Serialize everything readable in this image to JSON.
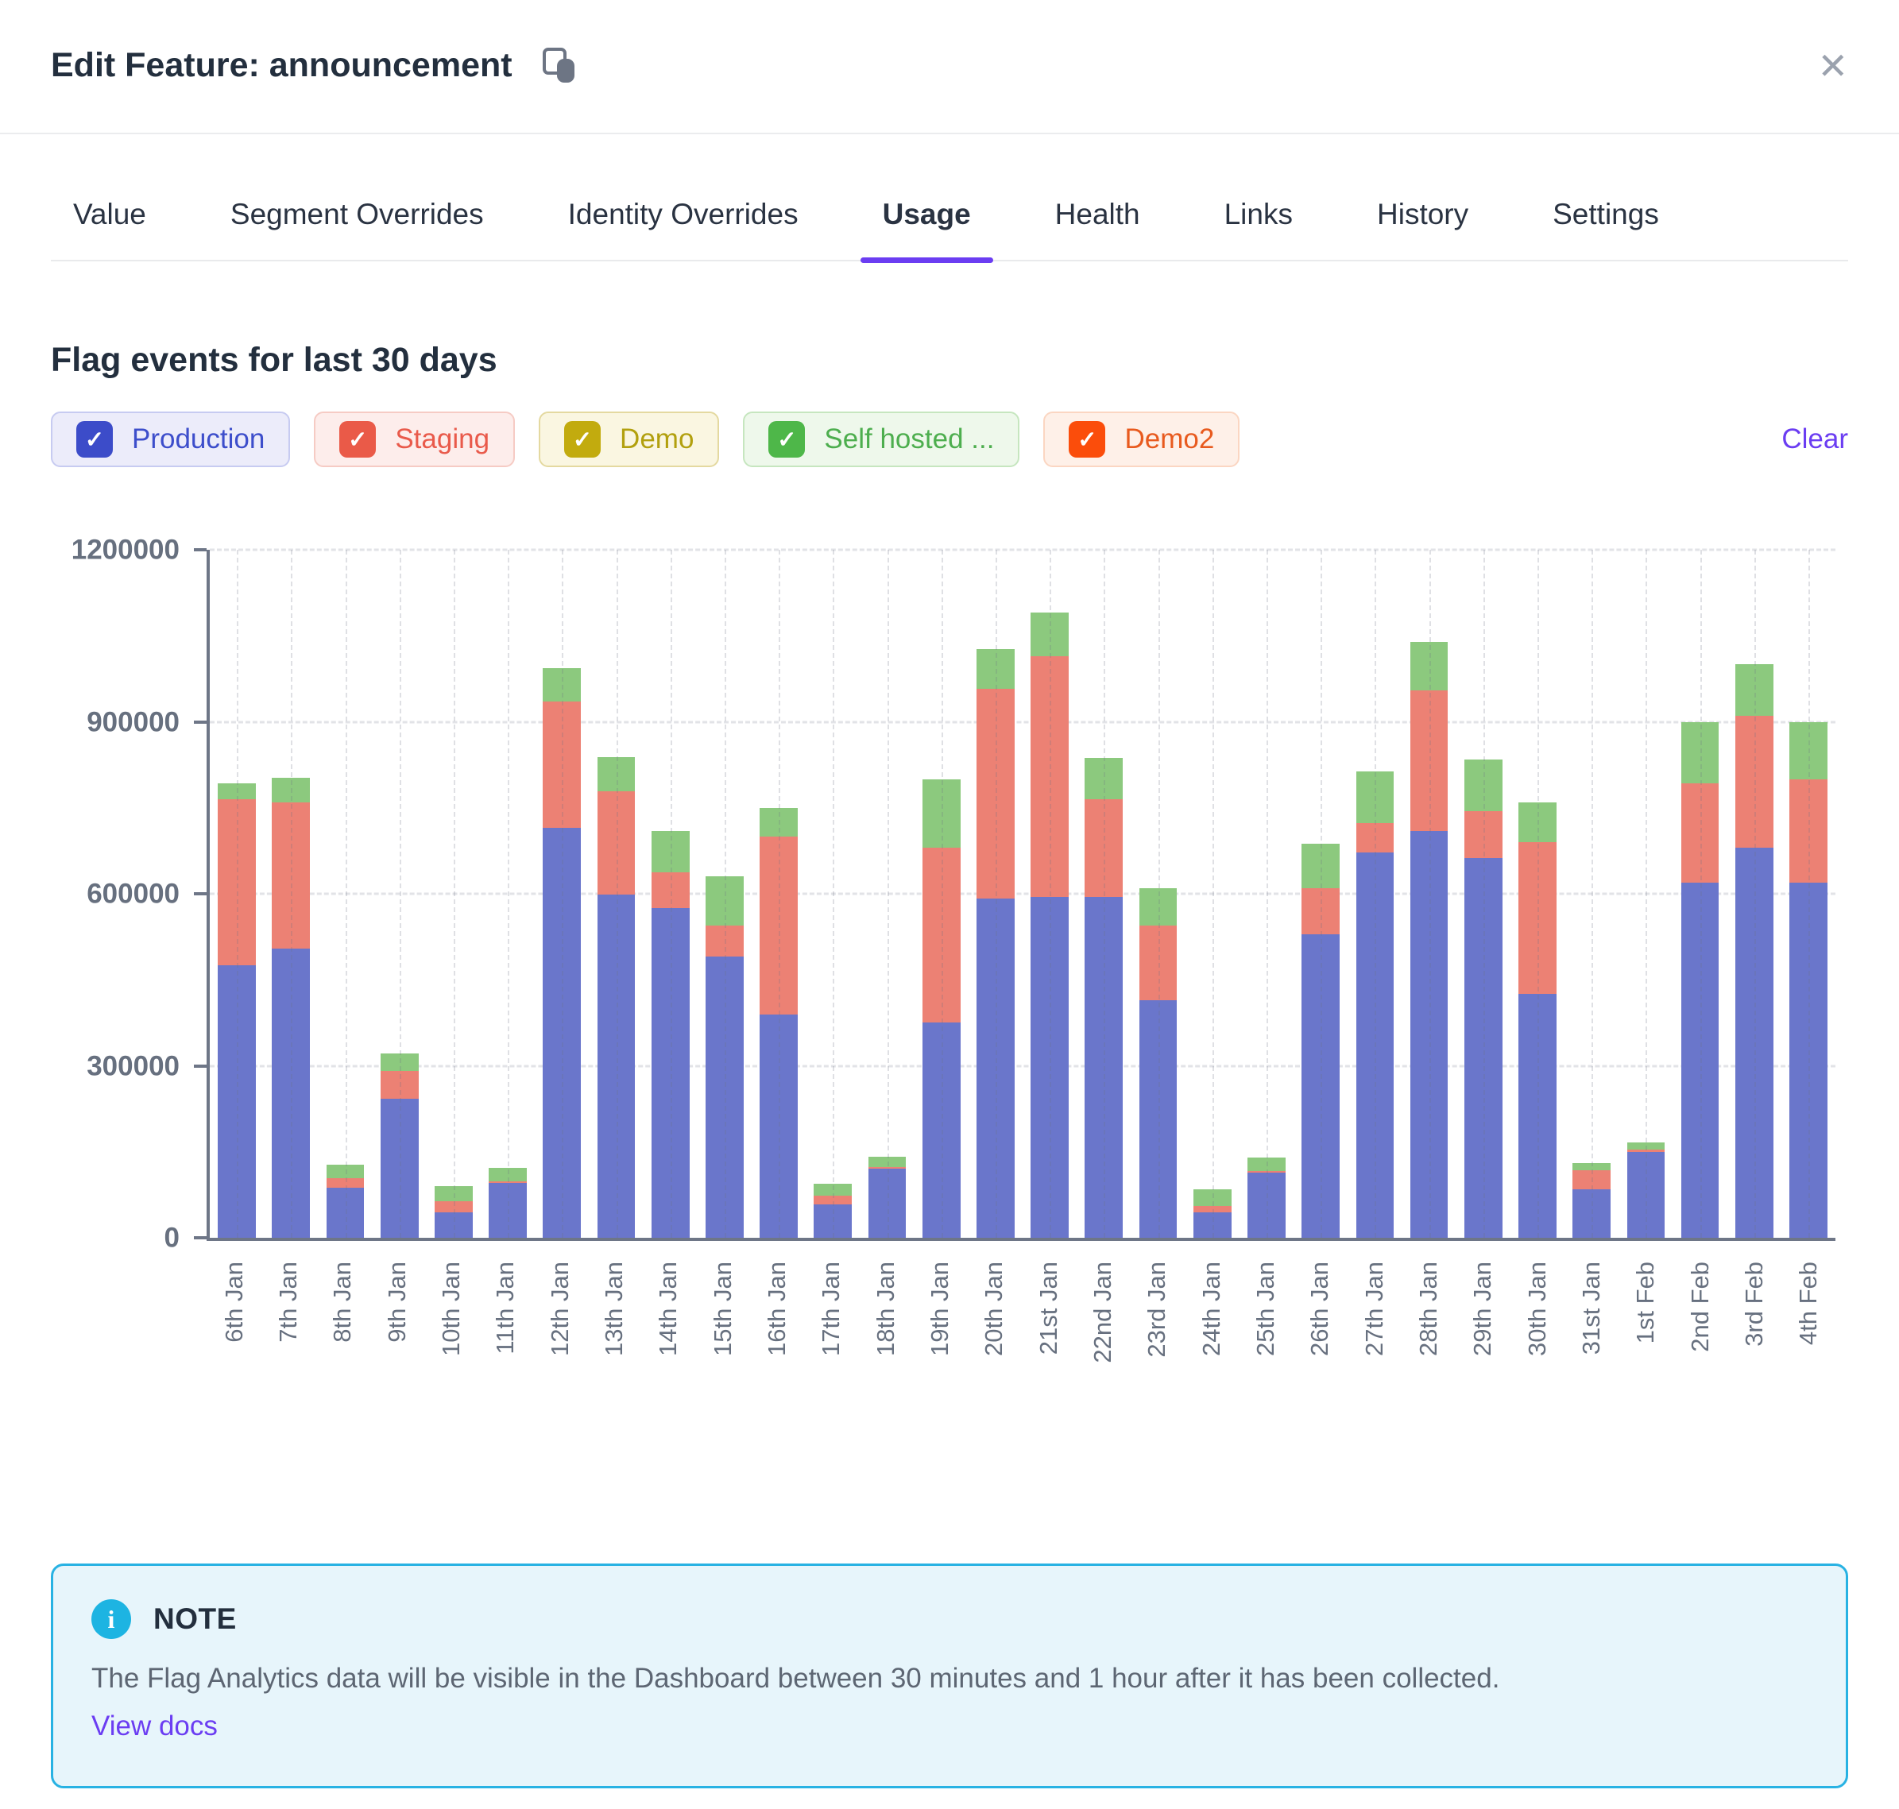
{
  "modal": {
    "title": "Edit Feature: announcement"
  },
  "icons": {
    "close": "✕",
    "check": "✓",
    "info": "i"
  },
  "colors": {
    "accent": "#6b3df2",
    "title_text": "#232f3e",
    "axis_text": "#67707f",
    "axis_line": "#6e7687",
    "note_bg": "#e7f5fb",
    "note_border": "#28b2e3",
    "info_icon_bg": "#1db4e2",
    "close_icon": "#9ba2ae"
  },
  "tabs": [
    {
      "label": "Value",
      "active": false
    },
    {
      "label": "Segment Overrides",
      "active": false
    },
    {
      "label": "Identity Overrides",
      "active": false
    },
    {
      "label": "Usage",
      "active": true
    },
    {
      "label": "Health",
      "active": false
    },
    {
      "label": "Links",
      "active": false
    },
    {
      "label": "History",
      "active": false
    },
    {
      "label": "Settings",
      "active": false
    }
  ],
  "usage": {
    "heading": "Flag events for last 30 days",
    "clear_label": "Clear",
    "filters": [
      {
        "label": "Production",
        "checked": true,
        "check": "#3c4cc9",
        "text": "#3d4ecb",
        "bg": "#ececfa",
        "border": "#c7cbf1"
      },
      {
        "label": "Staging",
        "checked": true,
        "check": "#ea5a48",
        "text": "#e95a4b",
        "bg": "#fdedeb",
        "border": "#f6cbc4"
      },
      {
        "label": "Demo",
        "checked": true,
        "check": "#c2ab0e",
        "text": "#b2a00e",
        "bg": "#faf6e1",
        "border": "#e4d9a0"
      },
      {
        "label": "Self hosted ...",
        "checked": true,
        "check": "#4eb749",
        "text": "#4dae4e",
        "bg": "#eef8eb",
        "border": "#c6e6bf"
      },
      {
        "label": "Demo2",
        "checked": true,
        "check": "#fb4d0b",
        "text": "#e85a1e",
        "bg": "#fef0e8",
        "border": "#fbd6c2"
      }
    ]
  },
  "chart_data": {
    "type": "bar",
    "stacked": true,
    "title": "Flag events for last 30 days",
    "xlabel": "",
    "ylabel": "",
    "ylim": [
      0,
      1200000
    ],
    "yticks": [
      0,
      300000,
      600000,
      900000,
      1200000
    ],
    "grid": true,
    "legend_position": "top-filter-chips",
    "categories": [
      "6th Jan",
      "7th Jan",
      "8th Jan",
      "9th Jan",
      "10th Jan",
      "11th Jan",
      "12th Jan",
      "13th Jan",
      "14th Jan",
      "15th Jan",
      "16th Jan",
      "17th Jan",
      "18th Jan",
      "19th Jan",
      "20th Jan",
      "21st Jan",
      "22nd Jan",
      "23rd Jan",
      "24th Jan",
      "25th Jan",
      "26th Jan",
      "27th Jan",
      "28th Jan",
      "29th Jan",
      "30th Jan",
      "31st Jan",
      "1st Feb",
      "2nd Feb",
      "3rd Feb",
      "4th Feb"
    ],
    "series": [
      {
        "name": "Production",
        "color": "#6a76cb",
        "values": [
          475000,
          505000,
          88000,
          243000,
          45000,
          95000,
          715000,
          598000,
          575000,
          490000,
          390000,
          58000,
          120000,
          375000,
          592000,
          595000,
          595000,
          415000,
          45000,
          113000,
          530000,
          672000,
          710000,
          662000,
          425000,
          85000,
          150000,
          620000,
          680000,
          620000
        ]
      },
      {
        "name": "Staging",
        "color": "#ec8174",
        "values": [
          290000,
          255000,
          16000,
          48000,
          19000,
          4000,
          220000,
          181000,
          63000,
          55000,
          310000,
          15000,
          4000,
          305000,
          365000,
          420000,
          170000,
          130000,
          11000,
          4000,
          80000,
          52000,
          245000,
          82000,
          265000,
          33000,
          4000,
          172000,
          230000,
          180000
        ]
      },
      {
        "name": "Self hosted ...",
        "color": "#8cc97e",
        "values": [
          28000,
          42000,
          24000,
          30000,
          26000,
          23000,
          58000,
          59000,
          72000,
          85000,
          50000,
          21000,
          18000,
          120000,
          70000,
          75000,
          72000,
          65000,
          28000,
          23000,
          78000,
          90000,
          85000,
          90000,
          70000,
          12000,
          12000,
          108000,
          90000,
          100000
        ]
      }
    ]
  },
  "note": {
    "title": "NOTE",
    "body": "The Flag Analytics data will be visible in the Dashboard between 30 minutes and 1 hour after it has been collected.",
    "link_label": "View docs"
  }
}
